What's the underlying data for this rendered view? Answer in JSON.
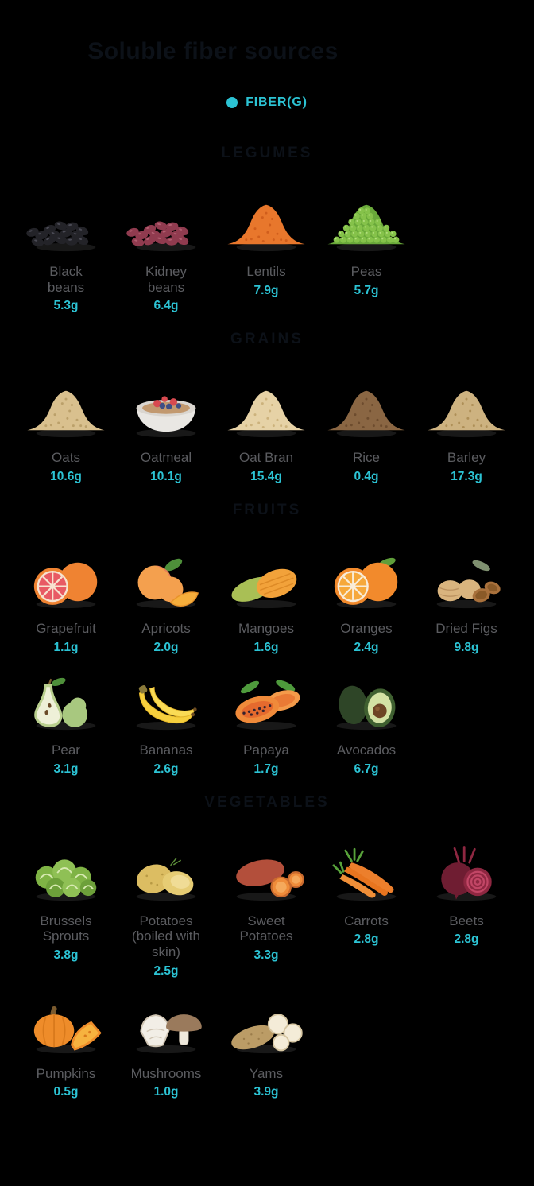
{
  "page": {
    "title": "Soluble fiber sources",
    "title_color": "#0c1118",
    "background_color": "#000000"
  },
  "legend": {
    "label": "FIBER(G)",
    "dot_icon": "legend-dot-icon",
    "accent_color": "#2cc3d4"
  },
  "text_colors": {
    "label": "#5b5c60",
    "value": "#2cc3d4"
  },
  "chart_data": {
    "type": "pictorial-table",
    "title": "Soluble fiber sources",
    "unit": "FIBER(G)",
    "groups": [
      {
        "group": "LEGUMES",
        "items": [
          {
            "food": "Black beans",
            "fiber_g": 5.3
          },
          {
            "food": "Kidney beans",
            "fiber_g": 6.4
          },
          {
            "food": "Lentils",
            "fiber_g": 7.9
          },
          {
            "food": "Peas",
            "fiber_g": 5.7
          }
        ]
      },
      {
        "group": "GRAINS",
        "items": [
          {
            "food": "Oats",
            "fiber_g": 10.6
          },
          {
            "food": "Oatmeal",
            "fiber_g": 10.1
          },
          {
            "food": "Oat Bran",
            "fiber_g": 15.4
          },
          {
            "food": "Rice",
            "fiber_g": 0.4
          },
          {
            "food": "Barley",
            "fiber_g": 17.3
          }
        ]
      },
      {
        "group": "FRUITS",
        "items": [
          {
            "food": "Grapefruit",
            "fiber_g": 1.1
          },
          {
            "food": "Apricots",
            "fiber_g": 2.0
          },
          {
            "food": "Mangoes",
            "fiber_g": 1.6
          },
          {
            "food": "Oranges",
            "fiber_g": 2.4
          },
          {
            "food": "Dried Figs",
            "fiber_g": 9.8
          },
          {
            "food": "Pear",
            "fiber_g": 3.1
          },
          {
            "food": "Bananas",
            "fiber_g": 2.6
          },
          {
            "food": "Papaya",
            "fiber_g": 1.7
          },
          {
            "food": "Avocados",
            "fiber_g": 6.7
          }
        ]
      },
      {
        "group": "VEGETABLES",
        "items": [
          {
            "food": "Brussels Sprouts",
            "fiber_g": 3.8
          },
          {
            "food": "Potatoes (boiled with skin)",
            "fiber_g": 2.5
          },
          {
            "food": "Sweet Potatoes",
            "fiber_g": 3.3
          },
          {
            "food": "Carrots",
            "fiber_g": 2.8
          },
          {
            "food": "Beets",
            "fiber_g": 2.8
          },
          {
            "food": "Pumpkins",
            "fiber_g": 0.5
          },
          {
            "food": "Mushrooms",
            "fiber_g": 1.0
          },
          {
            "food": "Yams",
            "fiber_g": 3.9
          }
        ]
      }
    ]
  },
  "sections": [
    {
      "id": "legumes",
      "header": "LEGUMES",
      "rows": [
        [
          {
            "name": "Black\nbeans",
            "value": "5.3g",
            "icon": "black-beans-icon",
            "type": "beans",
            "colors": [
              "#232328",
              "#4a4a54"
            ]
          },
          {
            "name": "Kidney\nbeans",
            "value": "6.4g",
            "icon": "kidney-beans-icon",
            "type": "beans",
            "colors": [
              "#903b4f",
              "#b25e70"
            ]
          },
          {
            "name": "Lentils",
            "value": "7.9g",
            "icon": "lentils-icon",
            "type": "mound",
            "colors": [
              "#e8772c",
              "#d05e1c"
            ]
          },
          {
            "name": "Peas",
            "value": "5.7g",
            "icon": "peas-icon",
            "type": "peas",
            "colors": [
              "#69a83a",
              "#85c24a",
              "#b2de7e"
            ]
          }
        ]
      ]
    },
    {
      "id": "grains",
      "header": "GRAINS",
      "rows": [
        [
          {
            "name": "Oats",
            "value": "10.6g",
            "icon": "oats-icon",
            "type": "mound",
            "colors": [
              "#d9c08e",
              "#bba06a"
            ]
          },
          {
            "name": "Oatmeal",
            "value": "10.1g",
            "icon": "oatmeal-bowl-icon",
            "type": "bowl",
            "colors": [
              "#e9e7e3",
              "#c2996f",
              "#d84a50",
              "#3f4f86"
            ]
          },
          {
            "name": "Oat Bran",
            "value": "15.4g",
            "icon": "oat-bran-icon",
            "type": "mound",
            "colors": [
              "#e6d2a6",
              "#ccb27c"
            ]
          },
          {
            "name": "Rice",
            "value": "0.4g",
            "icon": "rice-icon",
            "type": "mound",
            "colors": [
              "#8a6643",
              "#6d4c2e"
            ]
          },
          {
            "name": "Barley",
            "value": "17.3g",
            "icon": "barley-icon",
            "type": "mound",
            "colors": [
              "#cdb280",
              "#ae8f57"
            ]
          }
        ]
      ]
    },
    {
      "id": "fruits",
      "header": "FRUITS",
      "rows": [
        [
          {
            "name": "Grapefruit",
            "value": "1.1g",
            "icon": "grapefruit-icon",
            "type": "citrus",
            "colors": [
              "#ef8332",
              "#e85a64",
              "#f7e3d0",
              ""
            ]
          },
          {
            "name": "Apricots",
            "value": "2.0g",
            "icon": "apricots-icon",
            "type": "apricot",
            "colors": [
              "#f4a04e",
              "#e57a5c",
              "#4e8f3a",
              "#f6ae3c"
            ]
          },
          {
            "name": "Mangoes",
            "value": "1.6g",
            "icon": "mangoes-icon",
            "type": "mango",
            "colors": [
              "#a9bf55",
              "#f2a23a",
              "#dd8a26"
            ]
          },
          {
            "name": "Oranges",
            "value": "2.4g",
            "icon": "oranges-icon",
            "type": "citrus",
            "colors": [
              "#f28a2c",
              "#f6a83b",
              "#f9ecd8",
              "#5f9e3a"
            ]
          },
          {
            "name": "Dried Figs",
            "value": "9.8g",
            "icon": "dried-figs-icon",
            "type": "figs",
            "colors": [
              "#d9b47e",
              "#a9713c",
              "#7f9070"
            ]
          }
        ],
        [
          {
            "name": "Pear",
            "value": "3.1g",
            "icon": "pear-icon",
            "type": "pear",
            "colors": [
              "#b9cf8e",
              "#eef0d8",
              "#a8c87f",
              "#4e8f3a"
            ]
          },
          {
            "name": "Bananas",
            "value": "2.6g",
            "icon": "bananas-icon",
            "type": "banana",
            "colors": [
              "#f6cf3d",
              "#fadb55",
              "#6a4a22"
            ]
          },
          {
            "name": "Papaya",
            "value": "1.7g",
            "icon": "papaya-icon",
            "type": "papaya",
            "colors": [
              "#f08a3a",
              "#e56a2e",
              "#35222e",
              "#4e9a3c"
            ]
          },
          {
            "name": "Avocados",
            "value": "6.7g",
            "icon": "avocados-icon",
            "type": "avocado",
            "colors": [
              "#2e4527",
              "#3f6030",
              "#d3e2a4",
              "#6d4525"
            ]
          }
        ]
      ]
    },
    {
      "id": "vegetables",
      "header": "VEGETABLES",
      "rows": [
        [
          {
            "name": "Brussels\nSprouts",
            "value": "3.8g",
            "icon": "brussels-sprouts-icon",
            "type": "sprouts",
            "colors": [
              "#7fb345",
              "#8fc055",
              "#6da03a",
              "#d8eab2"
            ]
          },
          {
            "name": "Potatoes\n(boiled with\nskin)",
            "value": "2.5g",
            "icon": "potatoes-icon",
            "type": "potato",
            "colors": [
              "#dcbd62",
              "#e6cc74",
              "#f0dc96"
            ]
          },
          {
            "name": "Sweet\nPotatoes",
            "value": "3.3g",
            "icon": "sweet-potatoes-icon",
            "type": "sweetpotato",
            "colors": [
              "#b34f3b",
              "#c96a2e",
              "#ef8c3a"
            ]
          },
          {
            "name": "Carrots",
            "value": "2.8g",
            "icon": "carrots-icon",
            "type": "carrot",
            "colors": [
              "#ec7f2c",
              "#f08f38",
              "#58a23a"
            ]
          },
          {
            "name": "Beets",
            "value": "2.8g",
            "icon": "beets-icon",
            "type": "beet",
            "colors": [
              "#6f1d32",
              "#8e2741",
              "#c24666"
            ]
          }
        ],
        [
          {
            "name": "Pumpkins",
            "value": "0.5g",
            "icon": "pumpkins-icon",
            "type": "pumpkin",
            "colors": [
              "#ee8c2a",
              "#d97a1c",
              "#f6b23f",
              "#7a5a2e"
            ]
          },
          {
            "name": "Mushrooms",
            "value": "1.0g",
            "icon": "mushrooms-icon",
            "type": "mushroom",
            "colors": [
              "#f2eee6",
              "#cfc4b2",
              "#9a7a5c",
              "#efe9dc"
            ]
          },
          {
            "name": "Yams",
            "value": "3.9g",
            "icon": "yams-icon",
            "type": "yam",
            "colors": [
              "#bb9c66",
              "#f4ecd8",
              "#d6c6a2"
            ]
          }
        ]
      ]
    }
  ]
}
